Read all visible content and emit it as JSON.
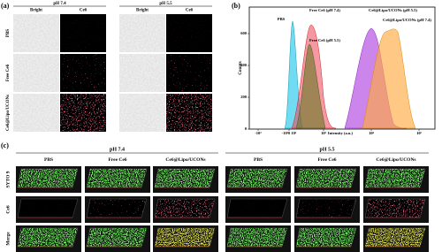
{
  "panel_a": {
    "label": "(a)",
    "groups": [
      {
        "title": "pH 7.4",
        "columns": [
          "Bright",
          "Ce6"
        ]
      },
      {
        "title": "pH 5.5",
        "columns": [
          "Bright",
          "Ce6"
        ]
      }
    ],
    "rows": [
      "PBS",
      "Free Ce6",
      "Ce6@Lipo/UCONs"
    ]
  },
  "panel_b": {
    "label": "(b)",
    "y_label": "Counts",
    "x_label": "Intensity (a.u.)",
    "yticks": [
      0,
      200,
      400,
      600
    ],
    "xticks": [
      "-10³",
      "-10²0 10²",
      "10³",
      "10⁴",
      "10⁵"
    ],
    "annotations": [
      "PBS",
      "Free Ce6 (pH 7.4)",
      "Free Ce6 (pH 5.5)",
      "Ce6@Lipo/UCONs (pH 5.5)",
      "Ce6@Lipo/UCONs (pH 7.4)"
    ]
  },
  "panel_c": {
    "label": "(c)",
    "groups": [
      {
        "title": "pH 7.4",
        "columns": [
          "PBS",
          "Free Ce6",
          "Ce6@Lipo/UCONs"
        ]
      },
      {
        "title": "pH 5.5",
        "columns": [
          "PBS",
          "Free Ce6",
          "Ce6@Lipo/UCONs"
        ]
      }
    ],
    "rows": [
      "SYTO 9",
      "Ce6",
      "Merge"
    ]
  }
}
